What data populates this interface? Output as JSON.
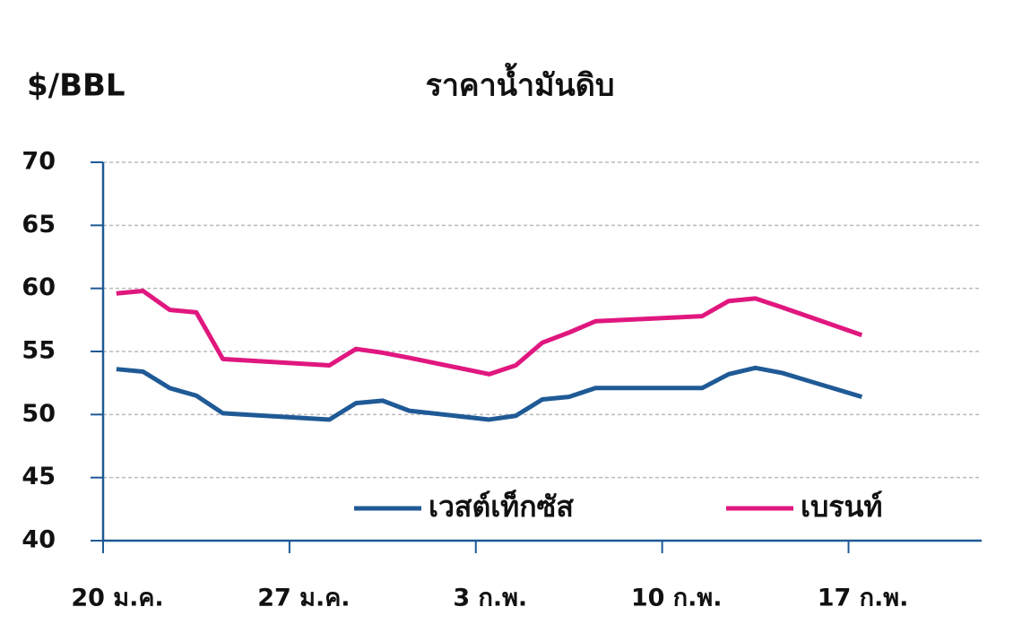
{
  "chart_data": {
    "type": "line",
    "title": "ราคาน้ำมันดิบ",
    "y_label": "$/BBL",
    "xlim": [
      0,
      33
    ],
    "xticks": [
      {
        "value": 0,
        "label": "20 ม.ค."
      },
      {
        "value": 7,
        "label": "27 ม.ค."
      },
      {
        "value": 14,
        "label": "3 ก.พ."
      },
      {
        "value": 21,
        "label": "10 ก.พ."
      },
      {
        "value": 28,
        "label": "17 ก.พ."
      }
    ],
    "ylim": [
      40,
      70
    ],
    "yticks": [
      40,
      45,
      50,
      55,
      60,
      65,
      70
    ],
    "grid": true,
    "legend": "bottom-right",
    "x": [
      0.5,
      1.5,
      2.5,
      3.5,
      4.5,
      8.5,
      9.5,
      10.5,
      11.5,
      14.5,
      15.5,
      16.5,
      17.5,
      18.5,
      22.5,
      23.5,
      24.5,
      25.5,
      28.5
    ],
    "series": [
      {
        "name": "เวสต์เท็กซัส",
        "color": "#1f5a96",
        "values": [
          53.6,
          53.4,
          52.1,
          51.5,
          50.1,
          49.6,
          50.9,
          51.1,
          50.3,
          49.6,
          49.9,
          51.2,
          51.4,
          52.1,
          52.1,
          53.2,
          53.7,
          53.3,
          51.4
        ]
      },
      {
        "name": "เบรนท์",
        "color": "#e0177f",
        "values": [
          59.6,
          59.8,
          58.3,
          58.1,
          54.4,
          53.9,
          55.2,
          54.9,
          54.5,
          53.2,
          53.9,
          55.7,
          56.5,
          57.4,
          57.8,
          59.0,
          59.2,
          58.5,
          56.3
        ]
      }
    ]
  }
}
